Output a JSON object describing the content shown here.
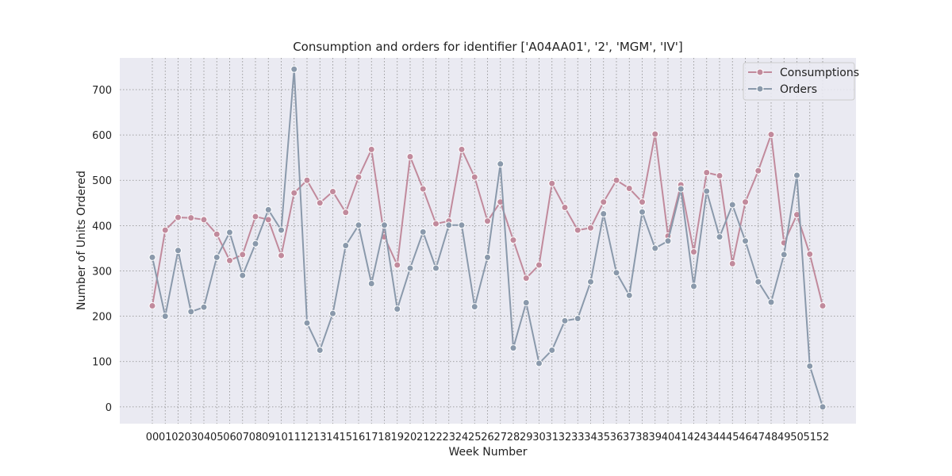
{
  "chart_data": {
    "type": "line",
    "title": "Consumption and orders for identifier ['A04AA01', '2', 'MGM', 'IV']",
    "xlabel": "Week Number",
    "ylabel": "Number of Units Ordered",
    "categories": [
      "00",
      "01",
      "02",
      "03",
      "04",
      "05",
      "06",
      "07",
      "08",
      "09",
      "10",
      "11",
      "12",
      "13",
      "14",
      "15",
      "16",
      "17",
      "18",
      "19",
      "20",
      "21",
      "22",
      "23",
      "24",
      "25",
      "26",
      "27",
      "28",
      "29",
      "30",
      "31",
      "32",
      "33",
      "34",
      "35",
      "36",
      "37",
      "38",
      "39",
      "40",
      "41",
      "42",
      "43",
      "44",
      "45",
      "46",
      "47",
      "48",
      "49",
      "50",
      "51",
      "52"
    ],
    "yticks": [
      0,
      100,
      200,
      300,
      400,
      500,
      600,
      700
    ],
    "ylim": [
      -37,
      770
    ],
    "grid": true,
    "legend_position": "top-right",
    "series": [
      {
        "name": "Consumptions",
        "color": "#c18a9c",
        "values": [
          223,
          390,
          418,
          417,
          413,
          381,
          323,
          336,
          420,
          413,
          334,
          472,
          500,
          450,
          475,
          429,
          507,
          568,
          375,
          313,
          552,
          481,
          404,
          410,
          568,
          507,
          410,
          452,
          368,
          284,
          313,
          493,
          440,
          390,
          395,
          452,
          500,
          482,
          452,
          602,
          377,
          490,
          342,
          517,
          510,
          316,
          452,
          521,
          601,
          362,
          424,
          337,
          223
        ]
      },
      {
        "name": "Orders",
        "color": "#8a99ab",
        "values": [
          330,
          200,
          345,
          210,
          220,
          330,
          385,
          290,
          360,
          435,
          390,
          745,
          185,
          125,
          206,
          356,
          401,
          272,
          401,
          216,
          306,
          386,
          306,
          401,
          401,
          221,
          330,
          536,
          130,
          230,
          96,
          125,
          190,
          195,
          276,
          426,
          296,
          246,
          430,
          350,
          366,
          481,
          266,
          476,
          375,
          446,
          366,
          276,
          231,
          336,
          511,
          90,
          0
        ]
      }
    ]
  }
}
